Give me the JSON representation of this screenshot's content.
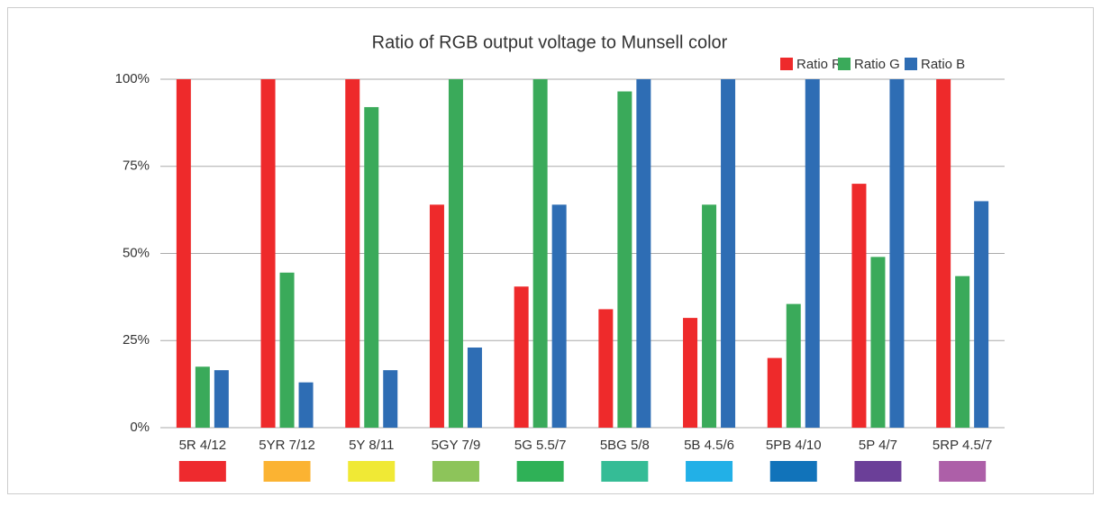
{
  "chart_data": {
    "type": "bar",
    "title": "Ratio of RGB output voltage to Munsell color",
    "categories": [
      "5R 4/12",
      "5YR 7/12",
      "5Y 8/11",
      "5GY 7/9",
      "5G 5.5/7",
      "5BG 5/8",
      "5B 4.5/6",
      "5PB 4/10",
      "5P 4/7",
      "5RP 4.5/7"
    ],
    "category_colors": [
      "#ee2a2e",
      "#fbb332",
      "#f0e935",
      "#8dc45a",
      "#2fb157",
      "#35bc96",
      "#22b0e7",
      "#1173ba",
      "#6b3f98",
      "#ad5fa8"
    ],
    "series": [
      {
        "name": "Ratio R",
        "color": "#ee2a2b",
        "values": [
          100,
          100,
          100,
          64,
          40.5,
          34,
          31.5,
          20,
          70,
          100
        ]
      },
      {
        "name": "Ratio G",
        "color": "#3aaa5a",
        "values": [
          17.5,
          44.5,
          92,
          100,
          100,
          96.5,
          64,
          35.5,
          49,
          43.5
        ]
      },
      {
        "name": "Ratio B",
        "color": "#2e6db4",
        "values": [
          16.5,
          13,
          16.5,
          23,
          64,
          100,
          100,
          100,
          100,
          65
        ]
      }
    ],
    "ylim": [
      0,
      100
    ],
    "yticks": [
      {
        "value": 0,
        "label": "0%"
      },
      {
        "value": 25,
        "label": "25%"
      },
      {
        "value": 50,
        "label": "50%"
      },
      {
        "value": 75,
        "label": "75%"
      },
      {
        "value": 100,
        "label": "100%"
      }
    ],
    "grid": true,
    "legend": "top-right"
  }
}
